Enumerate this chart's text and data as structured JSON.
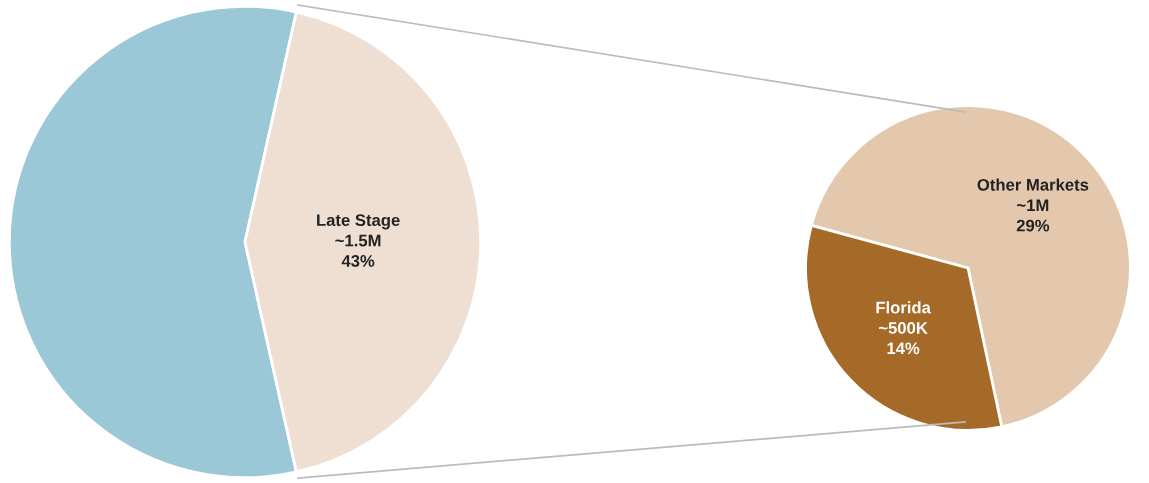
{
  "chart_data": [
    {
      "type": "pie",
      "categories": [
        null,
        "Late Stage"
      ],
      "values": [
        57,
        43
      ],
      "colors": [
        "#9ac8d6",
        "#eedfd2"
      ],
      "value_labels": [
        null,
        "~1.5M\n43%"
      ]
    },
    {
      "type": "pie",
      "categories": [
        "Other Markets",
        "Florida"
      ],
      "values": [
        29,
        14
      ],
      "colors": [
        "#e3c8ae",
        "#a56a28"
      ],
      "value_labels": [
        "~1M\n29%",
        "~500K\n14%"
      ]
    }
  ]
}
